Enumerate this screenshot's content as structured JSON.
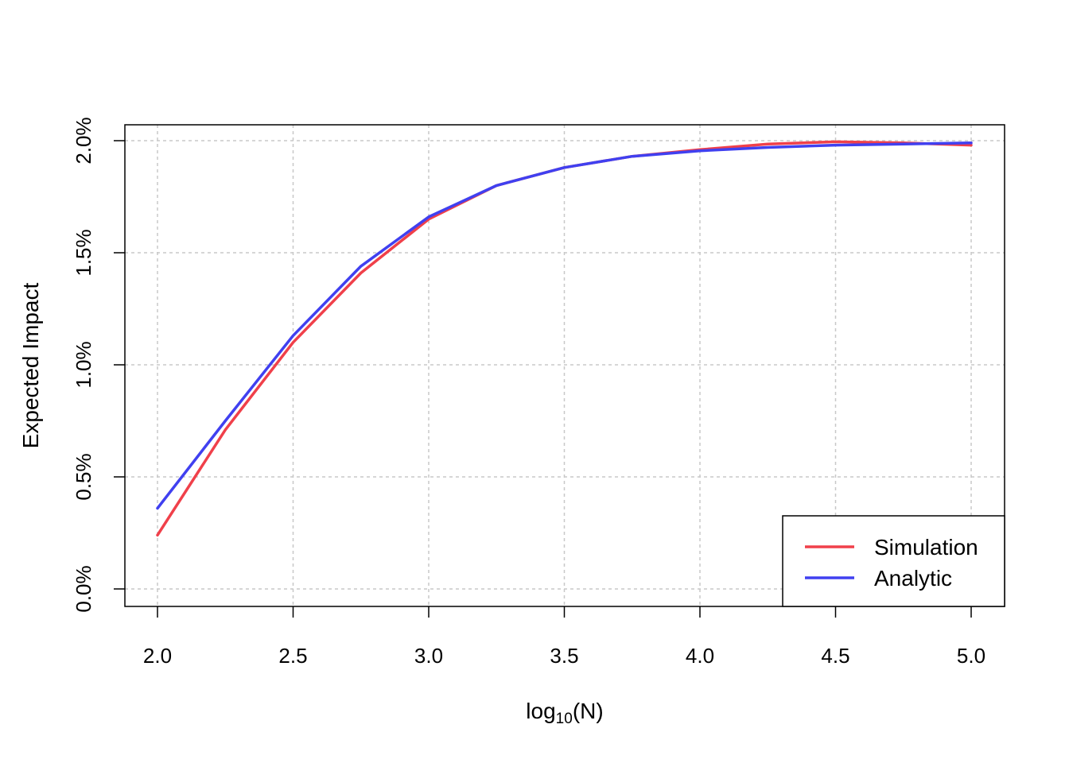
{
  "chart_data": {
    "type": "line",
    "xlabel_base": "log",
    "xlabel_sub": "10",
    "xlabel_tail": "(N)",
    "ylabel": "Expected Impact",
    "xlim": [
      2.0,
      5.0
    ],
    "ylim": [
      0.0,
      2.0
    ],
    "x_ticks": [
      2.0,
      2.5,
      3.0,
      3.5,
      4.0,
      4.5,
      5.0
    ],
    "x_tick_labels": [
      "2.0",
      "2.5",
      "3.0",
      "3.5",
      "4.0",
      "4.5",
      "5.0"
    ],
    "y_ticks": [
      0.0,
      0.5,
      1.0,
      1.5,
      2.0
    ],
    "y_tick_labels": [
      "0.0%",
      "0.5%",
      "1.0%",
      "1.5%",
      "2.0%"
    ],
    "y_unit": "%",
    "grid": true,
    "legend_position": "bottom-right",
    "x": [
      2.0,
      2.25,
      2.5,
      2.75,
      3.0,
      3.25,
      3.5,
      3.75,
      4.0,
      4.25,
      4.5,
      4.75,
      5.0
    ],
    "series": [
      {
        "name": "Simulation",
        "color": "#F0404A",
        "values": [
          0.24,
          0.71,
          1.1,
          1.41,
          1.65,
          1.8,
          1.88,
          1.93,
          1.96,
          1.985,
          1.995,
          1.99,
          1.98
        ]
      },
      {
        "name": "Analytic",
        "color": "#4040F0",
        "values": [
          0.36,
          0.75,
          1.13,
          1.44,
          1.66,
          1.8,
          1.88,
          1.93,
          1.955,
          1.97,
          1.98,
          1.985,
          1.99
        ]
      }
    ]
  }
}
